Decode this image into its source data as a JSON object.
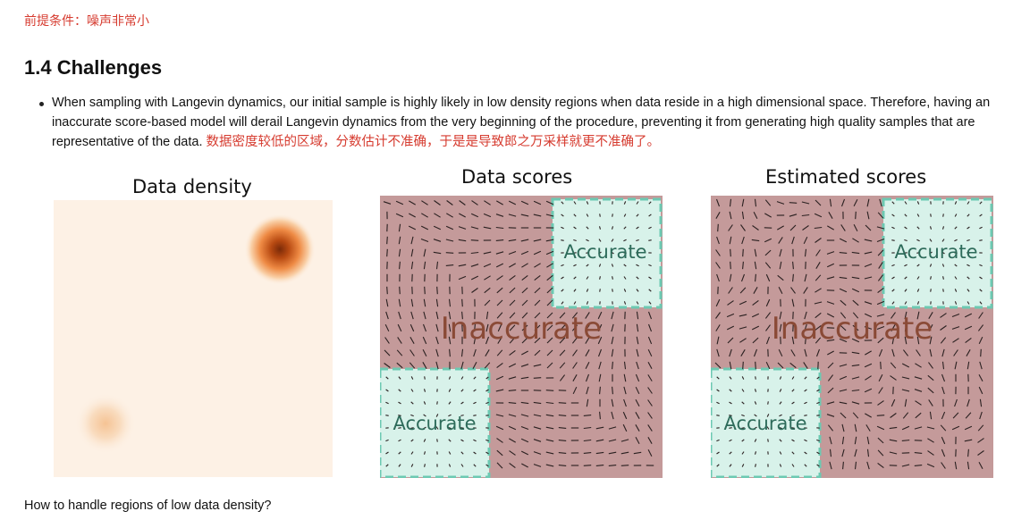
{
  "premise": "前提条件：噪声非常小",
  "section_title": "1.4 Challenges",
  "bullet": {
    "text_en": "When sampling with Langevin dynamics, our initial sample is highly likely in low density regions when data reside in a high dimensional space. Therefore, having an inaccurate score-based model will derail Langevin dynamics from the very beginning of the procedure, preventing it from generating high quality samples that are representative of the data.",
    "text_cn": "数据密度较低的区域，分数估计不准确，于是是导致郎之万采样就更不准确了。"
  },
  "figures": {
    "density_title": "Data density",
    "data_scores_title": "Data scores",
    "estimated_scores_title": "Estimated scores",
    "accurate_label": "Accurate",
    "inaccurate_label": "Inaccurate"
  },
  "colors": {
    "inaccurate_bg": "#c49a9a",
    "accurate_bg": "#d8f2ea",
    "accurate_border": "#6cc9b2",
    "inaccurate_text": "#8a4a36",
    "red_note": "#d63b2f"
  },
  "question": "How to handle regions of low data density?"
}
